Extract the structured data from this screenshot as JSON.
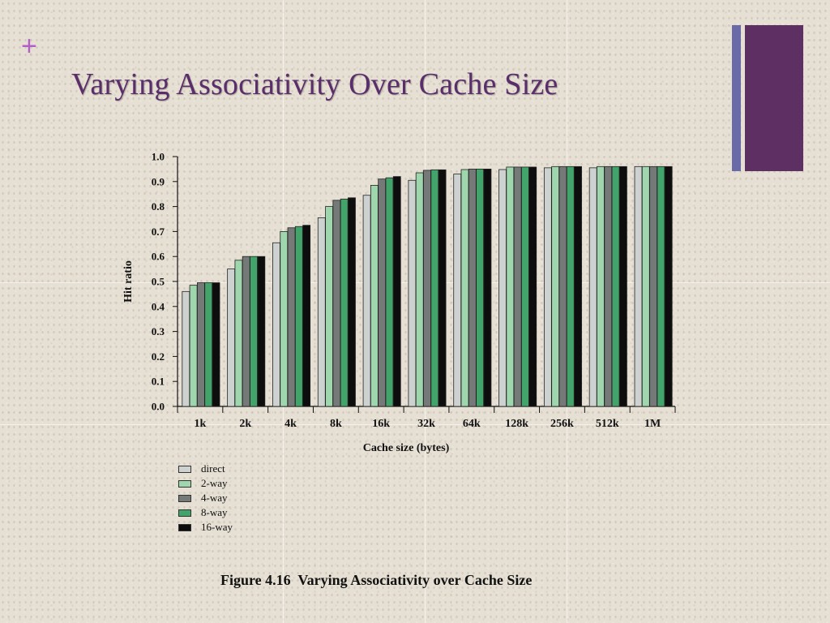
{
  "slide": {
    "plus_symbol": "+",
    "title": "Varying Associativity Over Cache Size",
    "caption": "Figure 4.16  Varying Associativity over Cache Size",
    "accent_purple": "#5e2f62",
    "accent_blue": "#6b6aa8",
    "title_color": "#5a2e6a",
    "plus_color": "#b25fc7"
  },
  "chart_data": {
    "type": "bar",
    "title": "",
    "xlabel": "Cache size (bytes)",
    "ylabel": "Hit ratio",
    "ylim": [
      0,
      1.0
    ],
    "yticks": [
      "0.0",
      "0.1",
      "0.2",
      "0.3",
      "0.4",
      "0.5",
      "0.6",
      "0.7",
      "0.8",
      "0.9",
      "1.0"
    ],
    "categories": [
      "1k",
      "2k",
      "4k",
      "8k",
      "16k",
      "32k",
      "64k",
      "128k",
      "256k",
      "512k",
      "1M"
    ],
    "grid": false,
    "legend_position": "below-left",
    "series": [
      {
        "name": "direct",
        "color": "#cdd2d0",
        "values": [
          0.46,
          0.55,
          0.655,
          0.755,
          0.845,
          0.905,
          0.93,
          0.948,
          0.955,
          0.955,
          0.96
        ]
      },
      {
        "name": "2-way",
        "color": "#9fd6ad",
        "values": [
          0.485,
          0.585,
          0.7,
          0.8,
          0.885,
          0.935,
          0.948,
          0.958,
          0.96,
          0.96,
          0.96
        ]
      },
      {
        "name": "4-way",
        "color": "#757a78",
        "values": [
          0.495,
          0.6,
          0.715,
          0.825,
          0.91,
          0.945,
          0.95,
          0.958,
          0.96,
          0.96,
          0.96
        ]
      },
      {
        "name": "8-way",
        "color": "#43a46b",
        "values": [
          0.495,
          0.6,
          0.72,
          0.83,
          0.915,
          0.947,
          0.95,
          0.958,
          0.96,
          0.96,
          0.96
        ]
      },
      {
        "name": "16-way",
        "color": "#0d0d0d",
        "values": [
          0.495,
          0.6,
          0.725,
          0.835,
          0.92,
          0.947,
          0.95,
          0.958,
          0.96,
          0.96,
          0.96
        ]
      }
    ]
  }
}
